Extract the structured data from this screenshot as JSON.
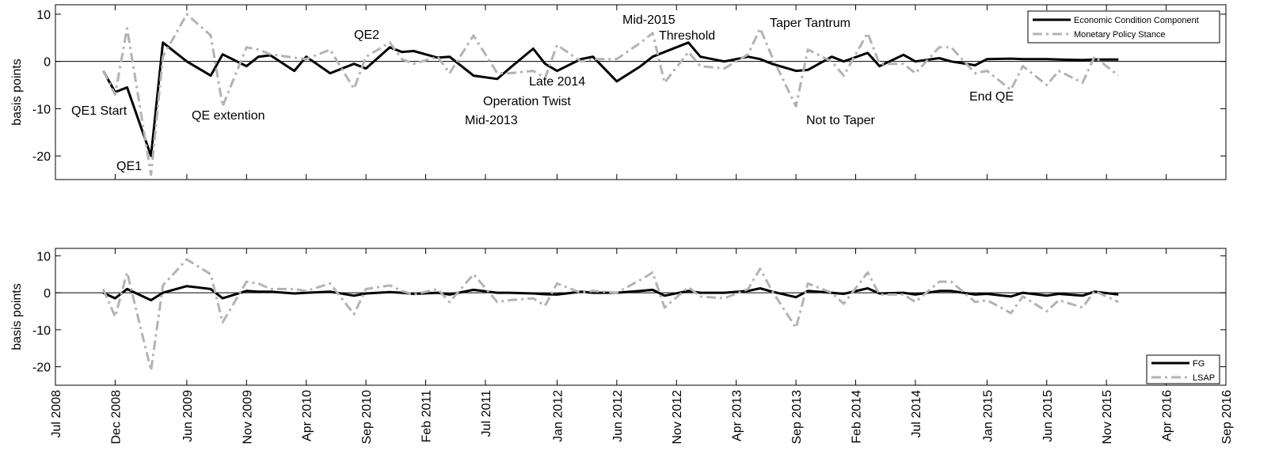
{
  "chart_data": [
    {
      "type": "line",
      "ylabel": "basis points",
      "x": [
        "2008-11",
        "2008-12",
        "2009-01",
        "2009-03",
        "2009-04",
        "2009-06",
        "2009-08",
        "2009-09",
        "2009-11",
        "2009-12",
        "2010-01",
        "2010-03",
        "2010-04",
        "2010-06",
        "2010-08",
        "2010-09",
        "2010-11",
        "2010-12",
        "2011-01",
        "2011-03",
        "2011-04",
        "2011-06",
        "2011-08",
        "2011-09",
        "2011-11",
        "2011-12",
        "2012-01",
        "2012-03",
        "2012-04",
        "2012-06",
        "2012-08",
        "2012-09",
        "2012-10",
        "2012-12",
        "2013-01",
        "2013-03",
        "2013-05",
        "2013-06",
        "2013-07",
        "2013-09",
        "2013-10",
        "2013-12",
        "2014-01",
        "2014-03",
        "2014-04",
        "2014-06",
        "2014-07",
        "2014-09",
        "2014-10",
        "2014-12",
        "2015-01",
        "2015-03",
        "2015-04",
        "2015-06",
        "2015-07",
        "2015-09",
        "2015-10",
        "2015-12"
      ],
      "series": [
        {
          "name": "Economic Condition Component",
          "color": "#000000",
          "dash": "solid",
          "values": [
            -2,
            -6.5,
            -5.5,
            -20,
            4,
            0,
            -3,
            1.5,
            -1,
            1,
            1.3,
            -2,
            1,
            -2.5,
            -0.5,
            -1.5,
            3,
            2,
            2.2,
            0.8,
            1,
            -3,
            -3.7,
            -1.5,
            2.7,
            -0.5,
            -2,
            0.5,
            1,
            -4.2,
            -1,
            1,
            2,
            4,
            1,
            0,
            1,
            0.5,
            -0.5,
            -2,
            -1.8,
            1,
            0,
            1.8,
            -1,
            1.4,
            0,
            0.7,
            0,
            -0.8,
            0.5,
            0.6,
            0.5,
            0.5,
            0.4,
            0.3,
            0.4,
            0.4
          ]
        },
        {
          "name": "Monetary Policy Stance",
          "color": "#b3b3b3",
          "dash": "dashdot",
          "values": [
            -2,
            -7,
            7,
            -24,
            1,
            10,
            5.5,
            -9.5,
            3,
            2.5,
            1.5,
            0.8,
            0.5,
            2.5,
            -5.8,
            1,
            4,
            0.5,
            -0.5,
            1,
            -2.5,
            5.5,
            -2.5,
            -2.5,
            -2,
            -3.5,
            3.5,
            0,
            0.5,
            0.5,
            4,
            6,
            -4.5,
            2,
            -1,
            -1.5,
            1.5,
            7,
            1,
            -9.5,
            2.5,
            0,
            -3,
            6,
            -0.5,
            -0.5,
            -2.5,
            3,
            3,
            -2.5,
            -2,
            -6,
            -1,
            -5,
            -2,
            -4.5,
            1,
            -3
          ]
        }
      ],
      "ylim": [
        -25,
        12
      ],
      "yticks": [
        -20,
        -10,
        0,
        10
      ],
      "legend": "upper right",
      "annotations": [
        "QE1 Start",
        "QE1",
        "QE extention",
        "QE2",
        "Late 2014",
        "Operation Twist",
        "Mid-2013",
        "Mid-2015",
        "Threshold",
        "Taper Tantrum",
        "Not to Taper",
        "End QE"
      ]
    },
    {
      "type": "line",
      "ylabel": "basis points",
      "x": [
        "2008-11",
        "2008-12",
        "2009-01",
        "2009-03",
        "2009-04",
        "2009-06",
        "2009-08",
        "2009-09",
        "2009-11",
        "2009-12",
        "2010-01",
        "2010-03",
        "2010-04",
        "2010-06",
        "2010-08",
        "2010-09",
        "2010-11",
        "2010-12",
        "2011-01",
        "2011-03",
        "2011-04",
        "2011-06",
        "2011-08",
        "2011-09",
        "2011-11",
        "2011-12",
        "2012-01",
        "2012-03",
        "2012-04",
        "2012-06",
        "2012-08",
        "2012-09",
        "2012-10",
        "2012-12",
        "2013-01",
        "2013-03",
        "2013-05",
        "2013-06",
        "2013-07",
        "2013-09",
        "2013-10",
        "2013-12",
        "2014-01",
        "2014-03",
        "2014-04",
        "2014-06",
        "2014-07",
        "2014-09",
        "2014-10",
        "2014-12",
        "2015-01",
        "2015-03",
        "2015-04",
        "2015-06",
        "2015-07",
        "2015-09",
        "2015-10",
        "2015-12"
      ],
      "series": [
        {
          "name": "FG",
          "color": "#000000",
          "dash": "solid",
          "values": [
            0,
            -1.5,
            1,
            -2,
            0,
            1.8,
            1,
            -1.5,
            0.5,
            0.3,
            0.3,
            -0.2,
            0,
            0.3,
            -0.8,
            -0.2,
            0.2,
            0,
            -0.3,
            0,
            -0.5,
            0.8,
            0,
            0,
            -0.2,
            -0.4,
            -0.5,
            0.3,
            0,
            0,
            0.5,
            0.8,
            -0.8,
            0.5,
            0,
            0,
            0.5,
            1.2,
            0.3,
            -1.2,
            0.5,
            0,
            -0.3,
            1.2,
            -0.2,
            0,
            -0.5,
            0.5,
            0.5,
            -0.5,
            -0.3,
            -1,
            0,
            -0.8,
            -0.3,
            -0.8,
            0.3,
            -0.5
          ]
        },
        {
          "name": "LSAP",
          "color": "#b3b3b3",
          "dash": "dashdot",
          "values": [
            1,
            -6.5,
            5.5,
            -21,
            2,
            9,
            5,
            -8,
            3,
            2.5,
            1,
            1,
            0.5,
            2.5,
            -5.8,
            1,
            2,
            0.5,
            -0.5,
            1,
            -2.5,
            5,
            -2.5,
            -2,
            -1.5,
            -3.5,
            2.5,
            0,
            0.5,
            0,
            3.5,
            5.5,
            -4,
            1.5,
            -1,
            -1.5,
            1,
            6.5,
            0.5,
            -9.5,
            2.5,
            0,
            -3,
            5.5,
            -0.5,
            -0.5,
            -2.5,
            3,
            3,
            -2.5,
            -2,
            -5.5,
            -1,
            -5,
            -2,
            -4,
            0.5,
            -2.5
          ]
        }
      ],
      "xlim": [
        "2008-07",
        "2016-09"
      ],
      "xticks": [
        {
          "value": "2008-07",
          "label": "Jul 2008"
        },
        {
          "value": "2008-12",
          "label": "Dec 2008"
        },
        {
          "value": "2009-06",
          "label": "Jun 2009"
        },
        {
          "value": "2009-11",
          "label": "Nov 2009"
        },
        {
          "value": "2010-04",
          "label": "Apr 2010"
        },
        {
          "value": "2010-09",
          "label": "Sep 2010"
        },
        {
          "value": "2011-02",
          "label": "Feb 2011"
        },
        {
          "value": "2011-07",
          "label": "Jul 2011"
        },
        {
          "value": "2012-01",
          "label": "Jan 2012"
        },
        {
          "value": "2012-06",
          "label": "Jun 2012"
        },
        {
          "value": "2012-11",
          "label": "Nov 2012"
        },
        {
          "value": "2013-04",
          "label": "Apr 2013"
        },
        {
          "value": "2013-09",
          "label": "Sep 2013"
        },
        {
          "value": "2014-02",
          "label": "Feb 2014"
        },
        {
          "value": "2014-07",
          "label": "Jul 2014"
        },
        {
          "value": "2015-01",
          "label": "Jan 2015"
        },
        {
          "value": "2015-06",
          "label": "Jun 2015"
        },
        {
          "value": "2015-11",
          "label": "Nov 2015"
        },
        {
          "value": "2016-04",
          "label": "Apr 2016"
        },
        {
          "value": "2016-09",
          "label": "Sep 2016"
        }
      ],
      "ylim": [
        -25,
        12
      ],
      "yticks": [
        -20,
        -10,
        0,
        10
      ],
      "legend": "lower right"
    }
  ]
}
